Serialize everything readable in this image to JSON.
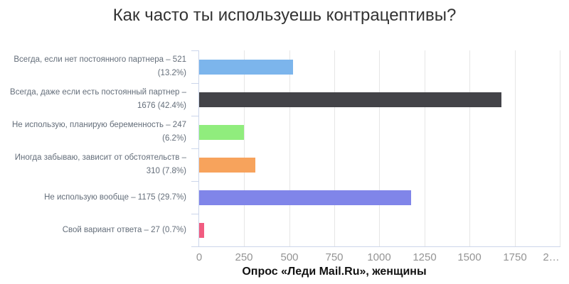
{
  "chart_data": {
    "type": "bar",
    "orientation": "horizontal",
    "title": "Как часто ты используешь контрацептивы?",
    "caption": "Опрос «Леди Mail.Ru», женщины",
    "categories": [
      "Всегда, если нет постоянного партнера – 521 (13.2%)",
      "Всегда, даже если есть постоянный партнер – 1676 (42.4%)",
      "Не использую, планирую беременность – 247 (6.2%)",
      "Иногда забываю, зависит от обстоятельств – 310 (7.8%)",
      "Не использую вообще – 1175 (29.7%)",
      "Свой вариант ответа – 27 (0.7%)"
    ],
    "label_lines": [
      [
        "Всегда, если нет постоянного партнера – 521",
        "(13.2%)"
      ],
      [
        "Всегда, даже если есть постоянный партнер –",
        "1676 (42.4%)"
      ],
      [
        "Не использую, планирую беременность – 247",
        "(6.2%)"
      ],
      [
        "Иногда забываю, зависит от обстоятельств –",
        "310 (7.8%)"
      ],
      [
        "Не использую вообще – 1175 (29.7%)"
      ],
      [
        "Свой вариант ответа – 27 (0.7%)"
      ]
    ],
    "values": [
      521,
      1676,
      247,
      310,
      1175,
      27
    ],
    "percentages": [
      13.2,
      42.4,
      6.2,
      7.8,
      29.7,
      0.7
    ],
    "colors": [
      "#7cb5ec",
      "#434348",
      "#90ed7d",
      "#f7a35c",
      "#8085e9",
      "#f15c80"
    ],
    "xlim": [
      0,
      2004
    ],
    "ticks": [
      {
        "value": 0,
        "label": "0"
      },
      {
        "value": 250,
        "label": "250"
      },
      {
        "value": 500,
        "label": "500"
      },
      {
        "value": 750,
        "label": "750"
      },
      {
        "value": 1000,
        "label": "1000"
      },
      {
        "value": 1250,
        "label": "1250"
      },
      {
        "value": 1500,
        "label": "1500"
      },
      {
        "value": 1750,
        "label": "1750"
      },
      {
        "value": 2000,
        "label": "2…"
      }
    ],
    "grid": "vertical",
    "legend": "none"
  }
}
